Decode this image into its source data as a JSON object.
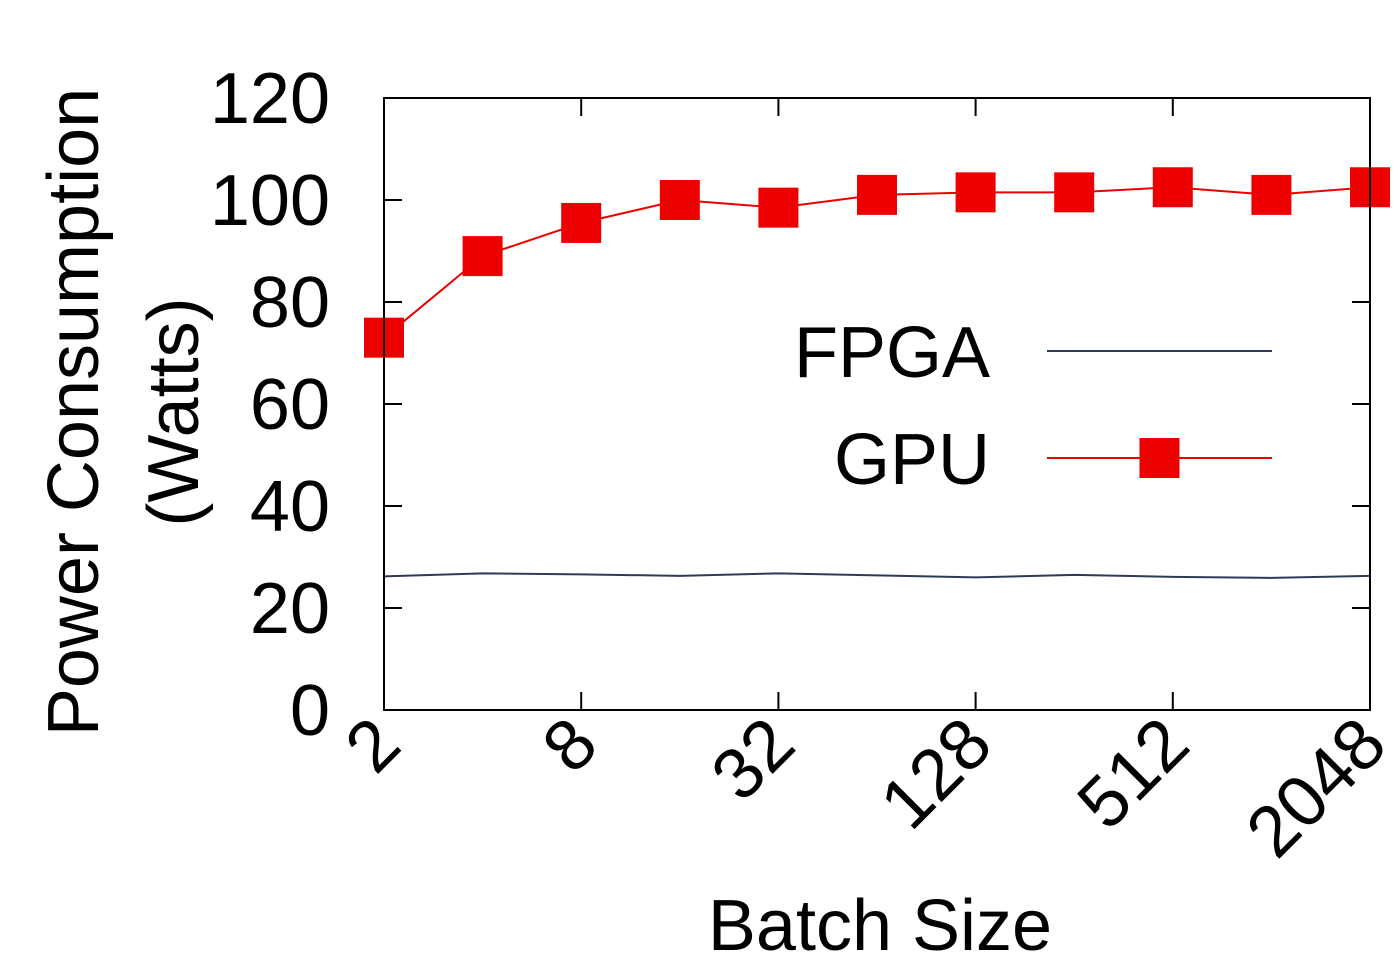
{
  "chart_data": {
    "type": "line",
    "xlabel": "Batch Size",
    "ylabel_lines": [
      "Power Consumption",
      "(Watts)"
    ],
    "x_scale": "log2",
    "x": [
      2,
      4,
      8,
      16,
      32,
      64,
      128,
      256,
      512,
      1024,
      2048
    ],
    "xticks": [
      2,
      8,
      32,
      128,
      512,
      2048
    ],
    "xtick_labels": [
      "2",
      "8",
      "32",
      "128",
      "512",
      "2048"
    ],
    "ylim": [
      0,
      120
    ],
    "yticks": [
      0,
      20,
      40,
      60,
      80,
      100,
      120
    ],
    "ytick_labels": [
      "0",
      "20",
      "40",
      "60",
      "80",
      "100",
      "120"
    ],
    "legend_position": "center-right",
    "series": [
      {
        "name": "FPGA",
        "color": "#2f3a55",
        "marker": "none",
        "values": [
          26.2,
          26.8,
          26.6,
          26.3,
          26.8,
          26.4,
          26.0,
          26.5,
          26.1,
          25.9,
          26.3
        ]
      },
      {
        "name": "GPU",
        "color": "#ee0000",
        "marker": "square",
        "values": [
          73,
          89,
          95.5,
          100,
          98.5,
          101,
          101.5,
          101.5,
          102.5,
          101,
          102.5
        ]
      }
    ]
  }
}
